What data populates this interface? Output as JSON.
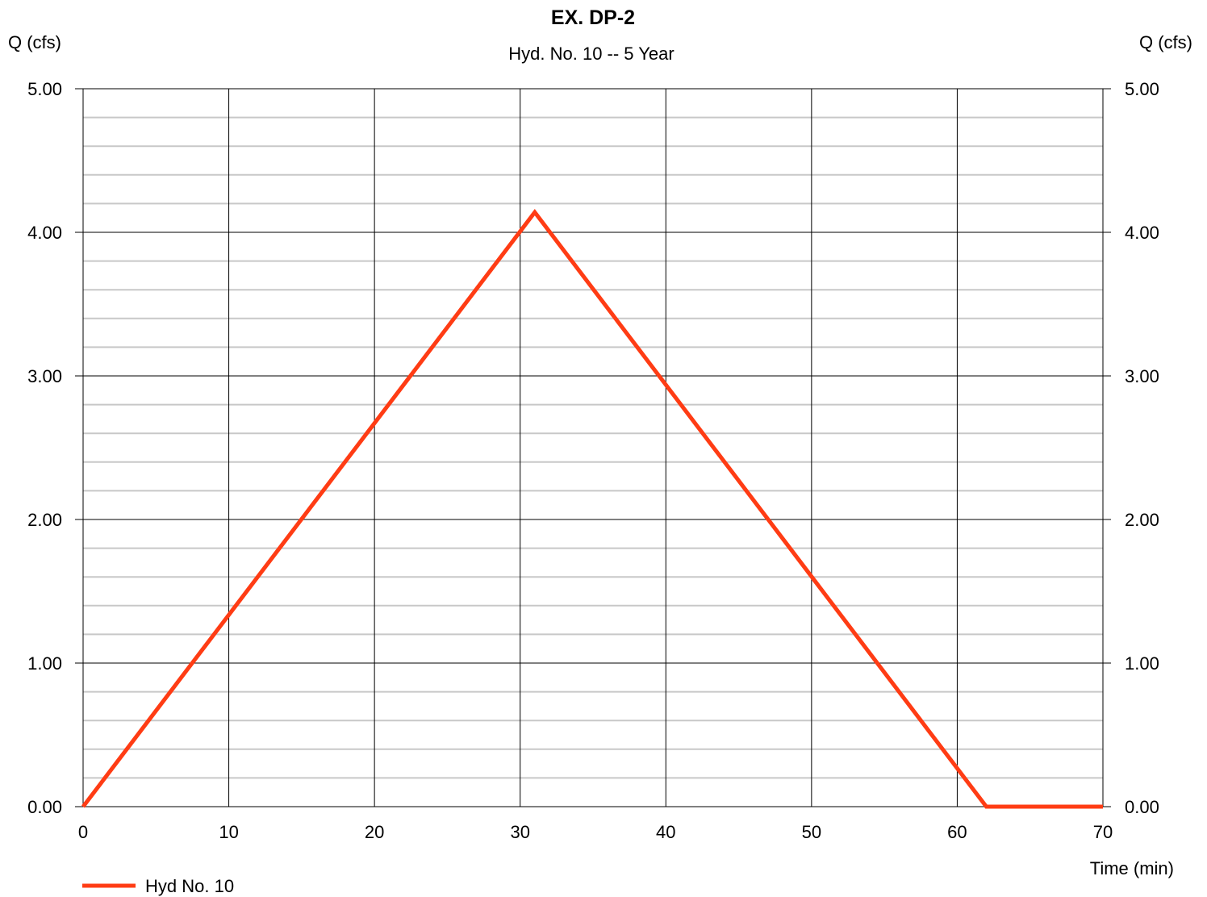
{
  "chart_data": {
    "type": "line",
    "title": "EX. DP-2",
    "subtitle": "Hyd. No. 10 -- 5 Year",
    "ylabel_left": "Q (cfs)",
    "ylabel_right": "Q (cfs)",
    "xlabel": "Time (min)",
    "xlim": [
      0,
      70
    ],
    "ylim": [
      0,
      5
    ],
    "x_ticks": [
      0,
      10,
      20,
      30,
      40,
      50,
      60,
      70
    ],
    "x_tick_labels": [
      "0",
      "10",
      "20",
      "30",
      "40",
      "50",
      "60",
      "70"
    ],
    "y_ticks": [
      0,
      1,
      2,
      3,
      4,
      5
    ],
    "y_tick_labels": [
      "0.00",
      "1.00",
      "2.00",
      "3.00",
      "4.00",
      "5.00"
    ],
    "y_minor_step": 0.2,
    "grid": true,
    "legend_position": "bottom-left",
    "series": [
      {
        "name": "Hyd No. 10",
        "color": "#ff3c14",
        "x": [
          0,
          31,
          62,
          70
        ],
        "y": [
          0.0,
          4.14,
          0.0,
          0.0
        ]
      }
    ]
  }
}
